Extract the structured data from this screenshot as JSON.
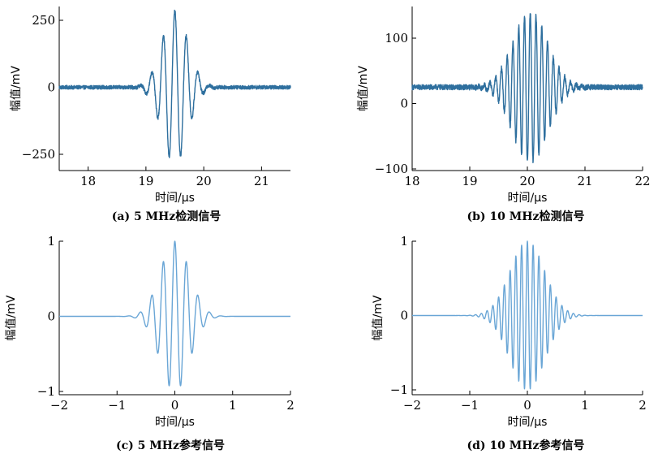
{
  "chart_data": [
    {
      "type": "line",
      "caption": "(a) 5 MHz检测信号",
      "xlabel": "时间/μs",
      "ylabel": "幅值/mV",
      "xlim": [
        17.5,
        21.5
      ],
      "ylim": [
        -330,
        310
      ],
      "xticks": [
        18,
        19,
        20,
        21
      ],
      "yticks": [
        250,
        0,
        -250
      ],
      "ytick_labels": [
        "250",
        "0",
        "−250"
      ],
      "signal": {
        "center": 19.5,
        "frequency_mhz": 5,
        "amplitude": 285,
        "sigma": 0.22,
        "baseline": 0,
        "noise": 7
      },
      "color": "#2e6f9e"
    },
    {
      "type": "line",
      "caption": "(b) 10 MHz检测信号",
      "xlabel": "时间/μs",
      "ylabel": "幅值/mV",
      "xlim": [
        18,
        22
      ],
      "ylim": [
        -100,
        150
      ],
      "xticks": [
        18,
        19,
        20,
        21,
        22
      ],
      "yticks": [
        100,
        0,
        -100
      ],
      "ytick_labels": [
        "100",
        "0",
        "−100"
      ],
      "signal": {
        "center": 20.05,
        "frequency_mhz": 10,
        "amplitude": 115,
        "sigma": 0.3,
        "baseline": 25,
        "noise": 4
      },
      "color": "#2e6f9e"
    },
    {
      "type": "line",
      "caption": "(c) 5 MHz参考信号",
      "xlabel": "时间/μs",
      "ylabel": "幅值/mV",
      "xlim": [
        -2,
        2
      ],
      "ylim": [
        -1,
        1
      ],
      "xticks": [
        -2,
        -1,
        0,
        1,
        2
      ],
      "xtick_labels": [
        "−2",
        "−1",
        "0",
        "1",
        "2"
      ],
      "yticks": [
        1,
        0,
        -1
      ],
      "ytick_labels": [
        "1",
        "0",
        "−1"
      ],
      "signal": {
        "center": 0,
        "frequency_mhz": 5,
        "amplitude": 1,
        "sigma": 0.25,
        "baseline": 0,
        "noise": 0
      },
      "color": "#6aa6d6"
    },
    {
      "type": "line",
      "caption": "(d) 10 MHz参考信号",
      "xlabel": "时间/μs",
      "ylabel": "幅值/mV",
      "xlim": [
        -2,
        2
      ],
      "ylim": [
        -1,
        1
      ],
      "xticks": [
        -2,
        -1,
        0,
        1,
        2
      ],
      "xtick_labels": [
        "−2",
        "−1",
        "0",
        "1",
        "2"
      ],
      "yticks": [
        1,
        0,
        -1
      ],
      "ytick_labels": [
        "1",
        "0",
        "−1"
      ],
      "signal": {
        "center": 0,
        "frequency_mhz": 10,
        "amplitude": 1,
        "sigma": 0.3,
        "baseline": 0,
        "noise": 0
      },
      "color": "#6aa6d6"
    }
  ]
}
